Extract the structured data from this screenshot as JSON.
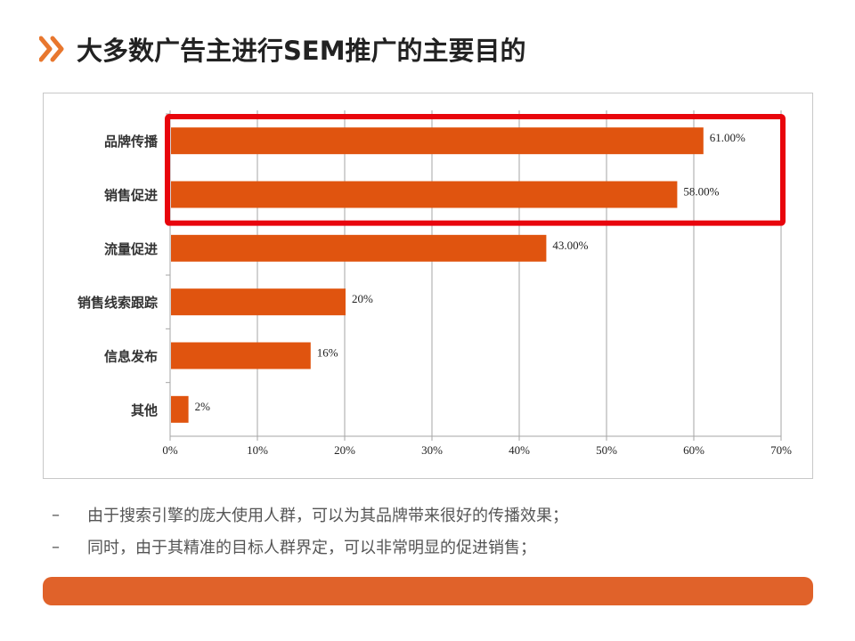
{
  "slide": {
    "title": "大多数广告主进行SEM推广的主要目的",
    "bullets": [
      {
        "marker": "–",
        "text": "由于搜索引擎的庞大使用人群，可以为其品牌带来很好的传播效果；"
      },
      {
        "marker": "–",
        "text": "同时，由于其精准的目标人群界定，可以非常明显的促进销售；"
      }
    ]
  },
  "colors": {
    "bar": "#e0540f",
    "highlight": "#e8050c",
    "accent": "#e0622a",
    "grid": "#a6a6a6"
  },
  "chart_data": {
    "type": "bar",
    "orientation": "horizontal",
    "categories": [
      "品牌传播",
      "销售促进",
      "流量促进",
      "销售线索跟踪",
      "信息发布",
      "其他"
    ],
    "values": [
      61,
      58,
      43,
      20,
      16,
      2
    ],
    "value_labels": [
      "61.00%",
      "58.00%",
      "43.00%",
      "20%",
      "16%",
      "2%"
    ],
    "xlim": [
      0,
      70
    ],
    "xticks": [
      "0%",
      "10%",
      "20%",
      "30%",
      "40%",
      "50%",
      "60%",
      "70%"
    ],
    "grid": true,
    "highlighted_categories": [
      "品牌传播",
      "销售促进"
    ]
  }
}
